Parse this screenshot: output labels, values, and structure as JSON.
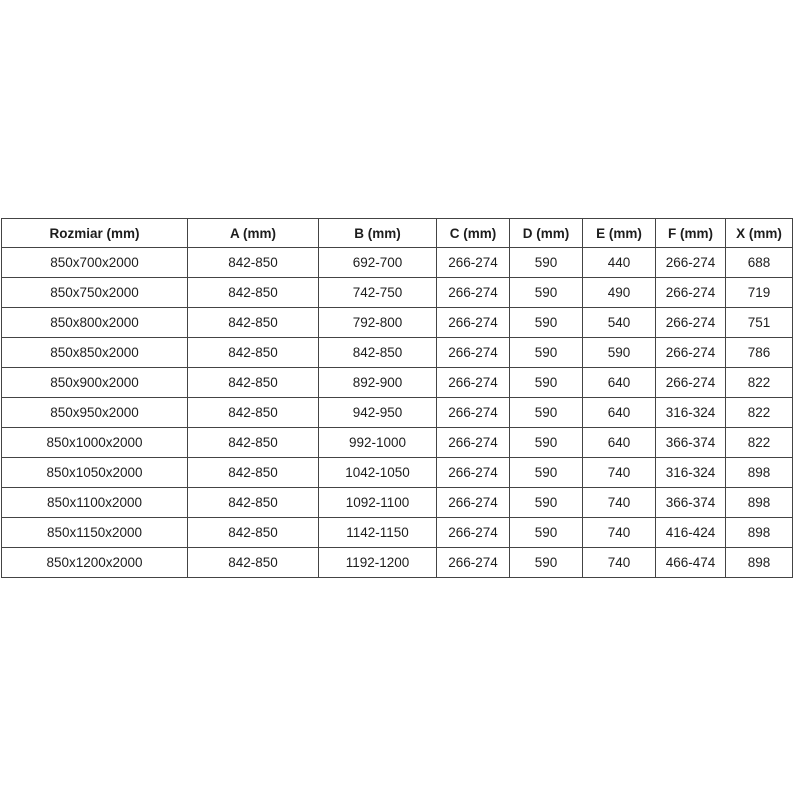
{
  "table": {
    "headers": [
      "Rozmiar (mm)",
      "A (mm)",
      "B (mm)",
      "C (mm)",
      "D (mm)",
      "E (mm)",
      "F (mm)",
      "X (mm)"
    ],
    "rows": [
      [
        "850x700x2000",
        "842-850",
        "692-700",
        "266-274",
        "590",
        "440",
        "266-274",
        "688"
      ],
      [
        "850x750x2000",
        "842-850",
        "742-750",
        "266-274",
        "590",
        "490",
        "266-274",
        "719"
      ],
      [
        "850x800x2000",
        "842-850",
        "792-800",
        "266-274",
        "590",
        "540",
        "266-274",
        "751"
      ],
      [
        "850x850x2000",
        "842-850",
        "842-850",
        "266-274",
        "590",
        "590",
        "266-274",
        "786"
      ],
      [
        "850x900x2000",
        "842-850",
        "892-900",
        "266-274",
        "590",
        "640",
        "266-274",
        "822"
      ],
      [
        "850x950x2000",
        "842-850",
        "942-950",
        "266-274",
        "590",
        "640",
        "316-324",
        "822"
      ],
      [
        "850x1000x2000",
        "842-850",
        "992-1000",
        "266-274",
        "590",
        "640",
        "366-374",
        "822"
      ],
      [
        "850x1050x2000",
        "842-850",
        "1042-1050",
        "266-274",
        "590",
        "740",
        "316-324",
        "898"
      ],
      [
        "850x1100x2000",
        "842-850",
        "1092-1100",
        "266-274",
        "590",
        "740",
        "366-374",
        "898"
      ],
      [
        "850x1150x2000",
        "842-850",
        "1142-1150",
        "266-274",
        "590",
        "740",
        "416-424",
        "898"
      ],
      [
        "850x1200x2000",
        "842-850",
        "1192-1200",
        "266-274",
        "590",
        "740",
        "466-474",
        "898"
      ]
    ]
  },
  "colors": {
    "background": "#ffffff",
    "border": "#444444",
    "text": "#1d1d1d"
  }
}
